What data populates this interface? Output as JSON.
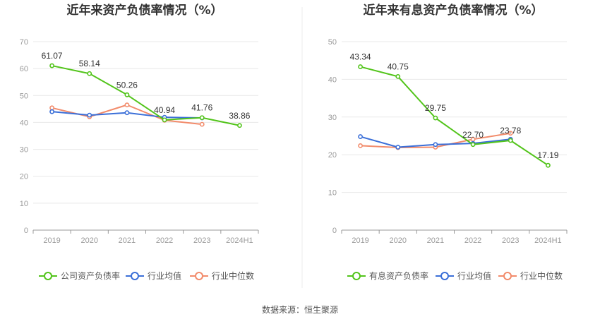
{
  "source_text": "数据来源：恒生聚源",
  "chart_data": [
    {
      "type": "line",
      "title": "近年来资产负债率情况（%）",
      "categories": [
        "2019",
        "2020",
        "2021",
        "2022",
        "2023",
        "2024H1"
      ],
      "ylim": [
        0,
        70
      ],
      "yticks": [
        0,
        10,
        20,
        30,
        40,
        50,
        60,
        70
      ],
      "grid": true,
      "legend_position": "bottom",
      "series": [
        {
          "name": "公司资产负债率",
          "color": "#52c41a",
          "labeled": true,
          "labels": [
            "61.07",
            "58.14",
            "50.26",
            "40.94",
            "41.76",
            "38.86"
          ],
          "values": [
            61.07,
            58.14,
            50.26,
            40.94,
            41.76,
            38.86
          ]
        },
        {
          "name": "行业均值",
          "color": "#3b6fd8",
          "labeled": false,
          "values": [
            44.0,
            42.7,
            43.6,
            41.9,
            41.7,
            null
          ]
        },
        {
          "name": "行业中位数",
          "color": "#f28b6b",
          "labeled": false,
          "values": [
            45.4,
            42.1,
            46.5,
            40.8,
            39.3,
            null
          ]
        }
      ]
    },
    {
      "type": "line",
      "title": "近年来有息资产负债率情况（%）",
      "categories": [
        "2019",
        "2020",
        "2021",
        "2022",
        "2023",
        "2024H1"
      ],
      "ylim": [
        0,
        50
      ],
      "yticks": [
        0,
        10,
        20,
        30,
        40,
        50
      ],
      "grid": true,
      "legend_position": "bottom",
      "series": [
        {
          "name": "有息资产负债率",
          "color": "#52c41a",
          "labeled": true,
          "labels": [
            "43.34",
            "40.75",
            "29.75",
            "22.70",
            "23.78",
            "17.19"
          ],
          "values": [
            43.34,
            40.75,
            29.75,
            22.7,
            23.78,
            17.19
          ]
        },
        {
          "name": "行业均值",
          "color": "#3b6fd8",
          "labeled": false,
          "values": [
            24.8,
            22.0,
            22.7,
            23.0,
            24.1,
            null
          ]
        },
        {
          "name": "行业中位数",
          "color": "#f28b6b",
          "labeled": false,
          "values": [
            22.4,
            21.9,
            22.0,
            24.1,
            25.7,
            null
          ]
        }
      ]
    }
  ]
}
